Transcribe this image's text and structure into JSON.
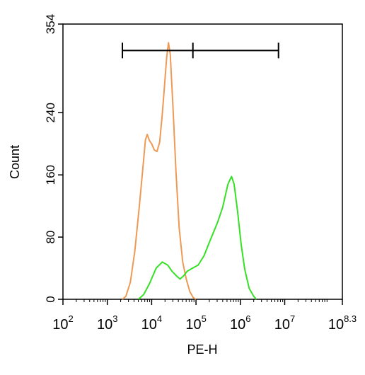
{
  "chart_data": {
    "type": "line",
    "title": "",
    "xlabel": "PE-H",
    "ylabel": "Count",
    "xscale": "log10",
    "xlim_log10": [
      2,
      8.3
    ],
    "ylim": [
      0,
      354
    ],
    "x_ticks": [
      {
        "base": "10",
        "exp": "2",
        "value": 2
      },
      {
        "base": "10",
        "exp": "3",
        "value": 3
      },
      {
        "base": "10",
        "exp": "4",
        "value": 4
      },
      {
        "base": "10",
        "exp": "5",
        "value": 5
      },
      {
        "base": "10",
        "exp": "6",
        "value": 6
      },
      {
        "base": "10",
        "exp": "7",
        "value": 7
      },
      {
        "base": "10",
        "exp": "8.3",
        "value": 8.3
      }
    ],
    "y_ticks": [
      "0",
      "80",
      "160",
      "240",
      "354"
    ],
    "y_tick_values": [
      0,
      80,
      160,
      240,
      354
    ],
    "gate": {
      "x_start_log10": 3.34,
      "x_mid_log10": 4.93,
      "x_end_log10": 6.86,
      "y": 320
    },
    "series": [
      {
        "color": "#ee9a55",
        "points_log10x": [
          [
            3.34,
            0
          ],
          [
            3.42,
            4
          ],
          [
            3.52,
            22
          ],
          [
            3.62,
            62
          ],
          [
            3.72,
            118
          ],
          [
            3.8,
            168
          ],
          [
            3.86,
            205
          ],
          [
            3.9,
            212
          ],
          [
            3.95,
            204
          ],
          [
            4.0,
            200
          ],
          [
            4.06,
            192
          ],
          [
            4.12,
            190
          ],
          [
            4.18,
            202
          ],
          [
            4.24,
            238
          ],
          [
            4.3,
            282
          ],
          [
            4.34,
            312
          ],
          [
            4.38,
            330
          ],
          [
            4.42,
            315
          ],
          [
            4.48,
            248
          ],
          [
            4.55,
            162
          ],
          [
            4.62,
            92
          ],
          [
            4.7,
            48
          ],
          [
            4.78,
            26
          ],
          [
            4.86,
            10
          ],
          [
            4.94,
            2
          ],
          [
            5.0,
            0
          ]
        ]
      },
      {
        "color": "#36e026",
        "points_log10x": [
          [
            3.7,
            0
          ],
          [
            3.82,
            6
          ],
          [
            3.95,
            20
          ],
          [
            4.1,
            40
          ],
          [
            4.24,
            48
          ],
          [
            4.36,
            44
          ],
          [
            4.46,
            36
          ],
          [
            4.56,
            30
          ],
          [
            4.64,
            26
          ],
          [
            4.72,
            30
          ],
          [
            4.8,
            36
          ],
          [
            4.92,
            40
          ],
          [
            5.05,
            44
          ],
          [
            5.18,
            56
          ],
          [
            5.32,
            76
          ],
          [
            5.48,
            98
          ],
          [
            5.6,
            118
          ],
          [
            5.72,
            148
          ],
          [
            5.8,
            158
          ],
          [
            5.86,
            148
          ],
          [
            5.94,
            112
          ],
          [
            6.02,
            70
          ],
          [
            6.1,
            38
          ],
          [
            6.2,
            14
          ],
          [
            6.3,
            4
          ],
          [
            6.36,
            0
          ]
        ]
      }
    ],
    "grid": false,
    "legend": "none"
  }
}
